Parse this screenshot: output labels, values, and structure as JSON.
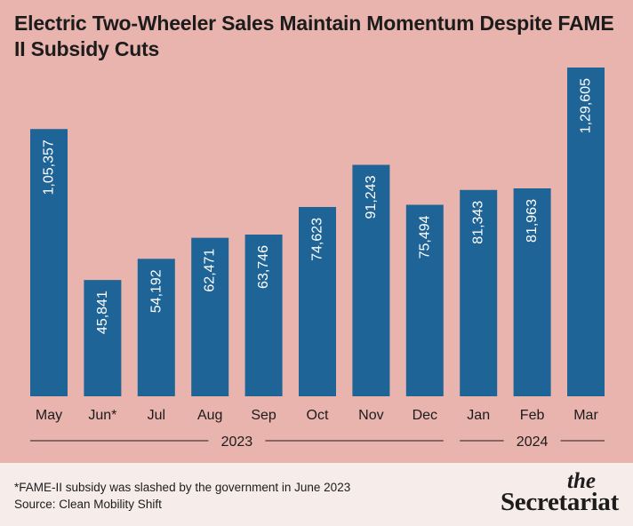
{
  "title": "Electric Two-Wheeler Sales Maintain Momentum Despite FAME II Subsidy Cuts",
  "colors": {
    "background": "#e8b4ad",
    "bar": "#1f6496",
    "footer": "#f6ecea",
    "text": "#1c1c1c",
    "bar_label": "#ffffff"
  },
  "chart_data": {
    "type": "bar",
    "categories": [
      "May",
      "Jun*",
      "Jul",
      "Aug",
      "Sep",
      "Oct",
      "Nov",
      "Dec",
      "Jan",
      "Feb",
      "Mar"
    ],
    "values": [
      105357,
      45841,
      54192,
      62471,
      63746,
      74623,
      91243,
      75494,
      81343,
      81963,
      129605
    ],
    "data_labels": [
      "1,05,357",
      "45,841",
      "54,192",
      "62,471",
      "63,746",
      "74,623",
      "91,243",
      "75,494",
      "81,343",
      "81,963",
      "1,29,605"
    ],
    "year_groups": [
      {
        "label": "2023",
        "from": "May",
        "to": "Dec"
      },
      {
        "label": "2024",
        "from": "Jan",
        "to": "Mar"
      }
    ],
    "ylim": [
      0,
      129605
    ],
    "grid": false,
    "legend": "none"
  },
  "footer": {
    "note": "*FAME-II subsidy was slashed by the government in June 2023",
    "source": "Source: Clean Mobility Shift",
    "brand_the": "the",
    "brand_name": "Secretariat"
  }
}
